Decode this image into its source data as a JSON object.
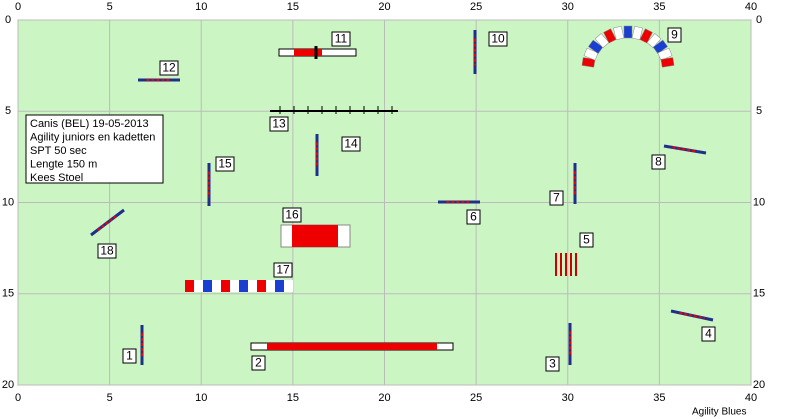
{
  "axis": {
    "xlim": [
      0,
      40
    ],
    "ylim": [
      0,
      20
    ],
    "xticks": [
      0,
      5,
      10,
      15,
      20,
      25,
      30,
      35,
      40
    ],
    "yticks": [
      0,
      5,
      10,
      15,
      20
    ]
  },
  "info": [
    "Canis  (BEL) 19-05-2013",
    "Agility juniors en kadetten",
    "SPT 50 sec",
    "Lengte 150 m",
    "Kees Stoel"
  ],
  "obstacles": [
    "1",
    "2",
    "3",
    "4",
    "5",
    "6",
    "7",
    "8",
    "9",
    "10",
    "11",
    "12",
    "13",
    "14",
    "15",
    "16",
    "17",
    "18"
  ],
  "footer": "Agility Blues"
}
